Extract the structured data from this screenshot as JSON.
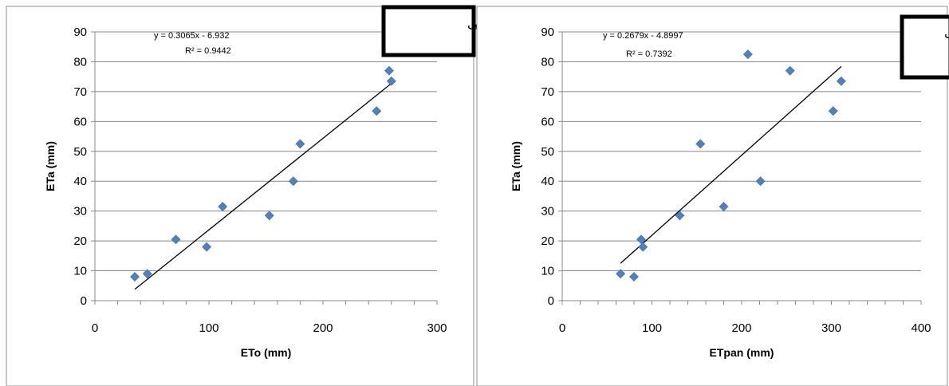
{
  "chart_data": [
    {
      "type": "scatter",
      "tag": "الف",
      "xlabel": "ETo (mm)",
      "ylabel": "ETa (mm)",
      "xlim": [
        0,
        300
      ],
      "ylim": [
        0,
        90
      ],
      "xticks": [
        "0",
        "100",
        "200",
        "300"
      ],
      "yticks": [
        "0",
        "10",
        "20",
        "30",
        "40",
        "50",
        "60",
        "70",
        "80",
        "90"
      ],
      "grid": true,
      "equation": "y = 0.3065x - 6.932",
      "r2": "R² = 0.9442",
      "trendline": {
        "slope": 0.3065,
        "intercept": -6.932,
        "x_range": [
          35,
          261
        ]
      },
      "points": [
        {
          "x": 35,
          "y": 8
        },
        {
          "x": 46,
          "y": 9
        },
        {
          "x": 71,
          "y": 20.5
        },
        {
          "x": 98,
          "y": 18
        },
        {
          "x": 112,
          "y": 31.5
        },
        {
          "x": 153,
          "y": 28.5
        },
        {
          "x": 174,
          "y": 40
        },
        {
          "x": 180,
          "y": 52.5
        },
        {
          "x": 247,
          "y": 63.5
        },
        {
          "x": 258,
          "y": 77
        },
        {
          "x": 260,
          "y": 73.5
        }
      ],
      "marker_color": "#4F81BD"
    },
    {
      "type": "scatter",
      "tag": "ب",
      "xlabel": "ETpan (mm)",
      "ylabel": "ETa (mm)",
      "xlim": [
        0,
        400
      ],
      "ylim": [
        0,
        90
      ],
      "xticks": [
        "0",
        "100",
        "200",
        "300",
        "400"
      ],
      "yticks": [
        "0",
        "10",
        "20",
        "30",
        "40",
        "50",
        "60",
        "70",
        "80",
        "90"
      ],
      "grid": true,
      "equation": "y = 0.2679x - 4.8997",
      "r2": "R² = 0.7392",
      "trendline": {
        "slope": 0.2679,
        "intercept": -4.8997,
        "x_range": [
          65,
          311
        ]
      },
      "points": [
        {
          "x": 65,
          "y": 9
        },
        {
          "x": 80,
          "y": 8
        },
        {
          "x": 88,
          "y": 20.5
        },
        {
          "x": 90,
          "y": 18
        },
        {
          "x": 131,
          "y": 28.5
        },
        {
          "x": 154,
          "y": 52.5
        },
        {
          "x": 180,
          "y": 31.5
        },
        {
          "x": 207,
          "y": 82.5
        },
        {
          "x": 221,
          "y": 40
        },
        {
          "x": 254,
          "y": 77
        },
        {
          "x": 302,
          "y": 63.5
        },
        {
          "x": 311,
          "y": 73.5
        }
      ],
      "marker_color": "#4F81BD"
    }
  ]
}
